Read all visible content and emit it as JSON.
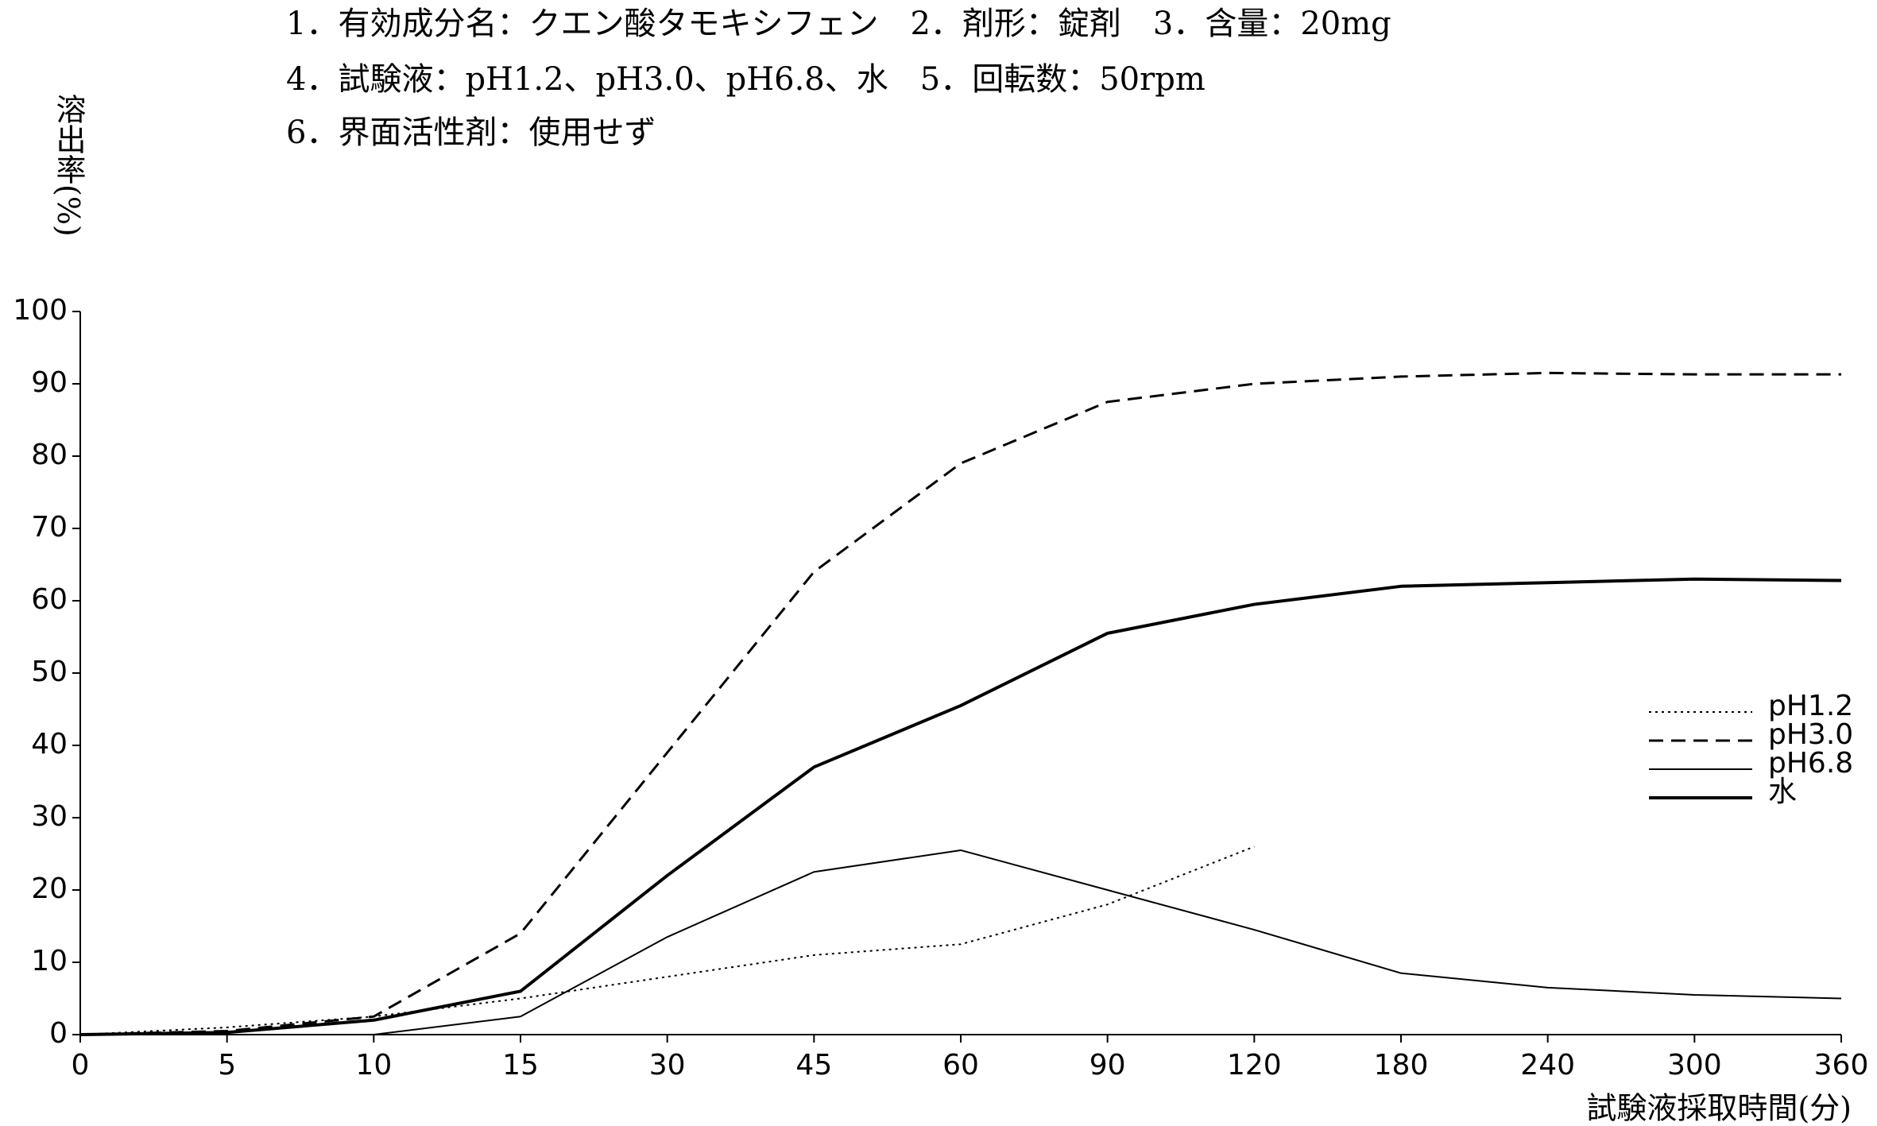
{
  "chart_data": {
    "type": "line",
    "header_lines": [
      "1．有効成分名：クエン酸タモキシフェン　2．剤形：錠剤　3．含量：20mg",
      "4．試験液：pH1.2、pH3.0、pH6.8、水　5．回転数：50rpm",
      "6．界面活性剤：使用せず"
    ],
    "y_label": "溶出率(%)",
    "x_label": "試験液採取時間(分)",
    "categories": [
      "0",
      "5",
      "10",
      "15",
      "30",
      "45",
      "60",
      "90",
      "120",
      "180",
      "240",
      "300",
      "360"
    ],
    "ylim": [
      0,
      100
    ],
    "yticks": [
      0,
      10,
      20,
      30,
      40,
      50,
      60,
      70,
      80,
      90,
      100
    ],
    "legend": "right",
    "series": [
      {
        "name": "pH1.2",
        "color": "#000000",
        "line_style": "dotted",
        "values": [
          0,
          1,
          2.5,
          5,
          8,
          11,
          12.5,
          18,
          26,
          null,
          null,
          null,
          null
        ]
      },
      {
        "name": "pH3.0",
        "color": "#000000",
        "line_style": "dashed",
        "values": [
          0,
          0.5,
          2.5,
          14,
          39,
          64,
          79,
          87.5,
          90,
          91,
          91.5,
          91.3,
          91.3
        ]
      },
      {
        "name": "pH6.8",
        "color": "#000000",
        "line_style": "thin",
        "values": [
          0,
          0,
          0,
          2.5,
          13.5,
          22.5,
          25.5,
          20,
          14.5,
          8.5,
          6.5,
          5.5,
          5
        ]
      },
      {
        "name": "水",
        "color": "#000000",
        "line_style": "thick",
        "values": [
          0,
          0.3,
          2,
          6,
          22,
          37,
          45.5,
          55.5,
          59.5,
          62,
          62.5,
          63,
          62.8
        ]
      }
    ]
  }
}
